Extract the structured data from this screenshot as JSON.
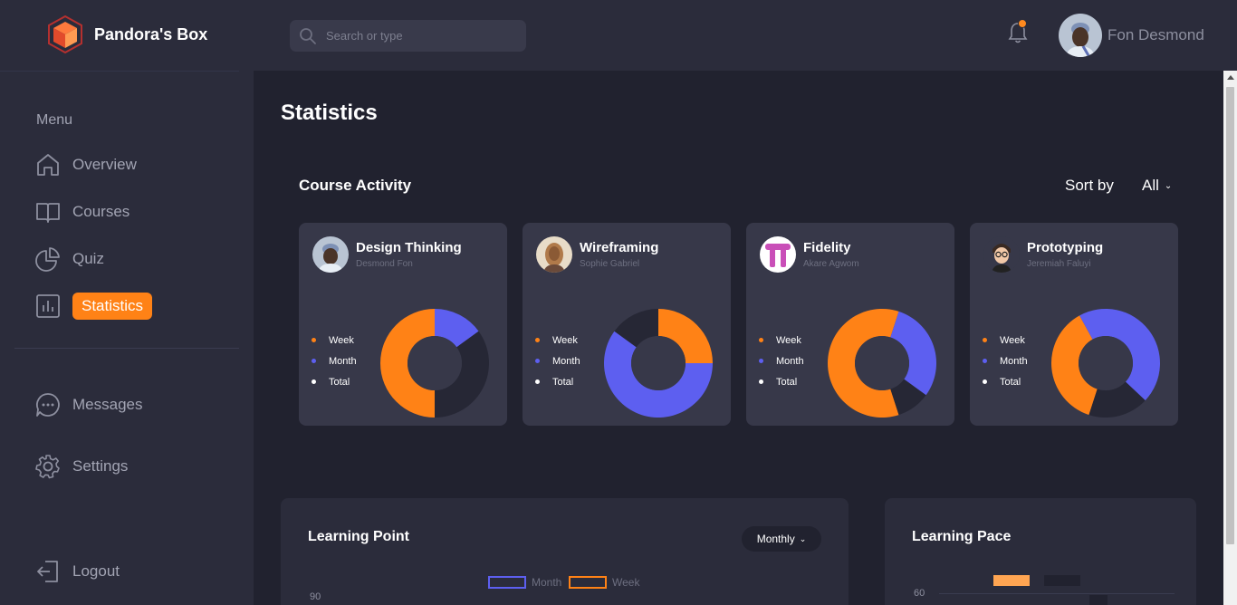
{
  "app": {
    "name": "Pandora's Box"
  },
  "search": {
    "placeholder": "Search or type"
  },
  "user": {
    "name": "Fon Desmond"
  },
  "colors": {
    "accent": "#ff8216",
    "month": "#5d5ff0",
    "total": "#262735",
    "surface": "#2b2c3b",
    "card": "#373849"
  },
  "sidebar": {
    "menu_label": "Menu",
    "items": [
      {
        "label": "Overview",
        "icon": "home-icon"
      },
      {
        "label": "Courses",
        "icon": "book-icon"
      },
      {
        "label": "Quiz",
        "icon": "pie-chart-icon"
      },
      {
        "label": "Statistics",
        "icon": "bar-chart-icon",
        "active": true
      }
    ],
    "secondary": [
      {
        "label": "Messages",
        "icon": "chat-icon"
      },
      {
        "label": "Settings",
        "icon": "gear-icon"
      }
    ],
    "logout": "Logout"
  },
  "main": {
    "title": "Statistics",
    "section_title": "Course Activity",
    "sort_label": "Sort by",
    "sort_value": "All"
  },
  "legend_labels": [
    "Week",
    "Month",
    "Total"
  ],
  "chart_data": [
    {
      "type": "pie",
      "title": "Design Thinking",
      "subtitle": "Desmond Fon",
      "categories": [
        "Week",
        "Month",
        "Total"
      ],
      "values": [
        50,
        15,
        35
      ]
    },
    {
      "type": "pie",
      "title": "Wireframing",
      "subtitle": "Sophie Gabriel",
      "categories": [
        "Week",
        "Month",
        "Total"
      ],
      "values": [
        25,
        60,
        15
      ]
    },
    {
      "type": "pie",
      "title": "Fidelity",
      "subtitle": "Akare Agwom",
      "categories": [
        "Week",
        "Month",
        "Total"
      ],
      "values": [
        60,
        30,
        10
      ]
    },
    {
      "type": "pie",
      "title": "Prototyping",
      "subtitle": "Jeremiah Faluyi",
      "categories": [
        "Week",
        "Month",
        "Total"
      ],
      "values": [
        37,
        45,
        18
      ]
    }
  ],
  "learning_point": {
    "title": "Learning Point",
    "period": "Monthly",
    "legend": [
      "Month",
      "Week"
    ],
    "y_tick": "90"
  },
  "learning_pace": {
    "title": "Learning Pace",
    "y_tick": "60"
  }
}
